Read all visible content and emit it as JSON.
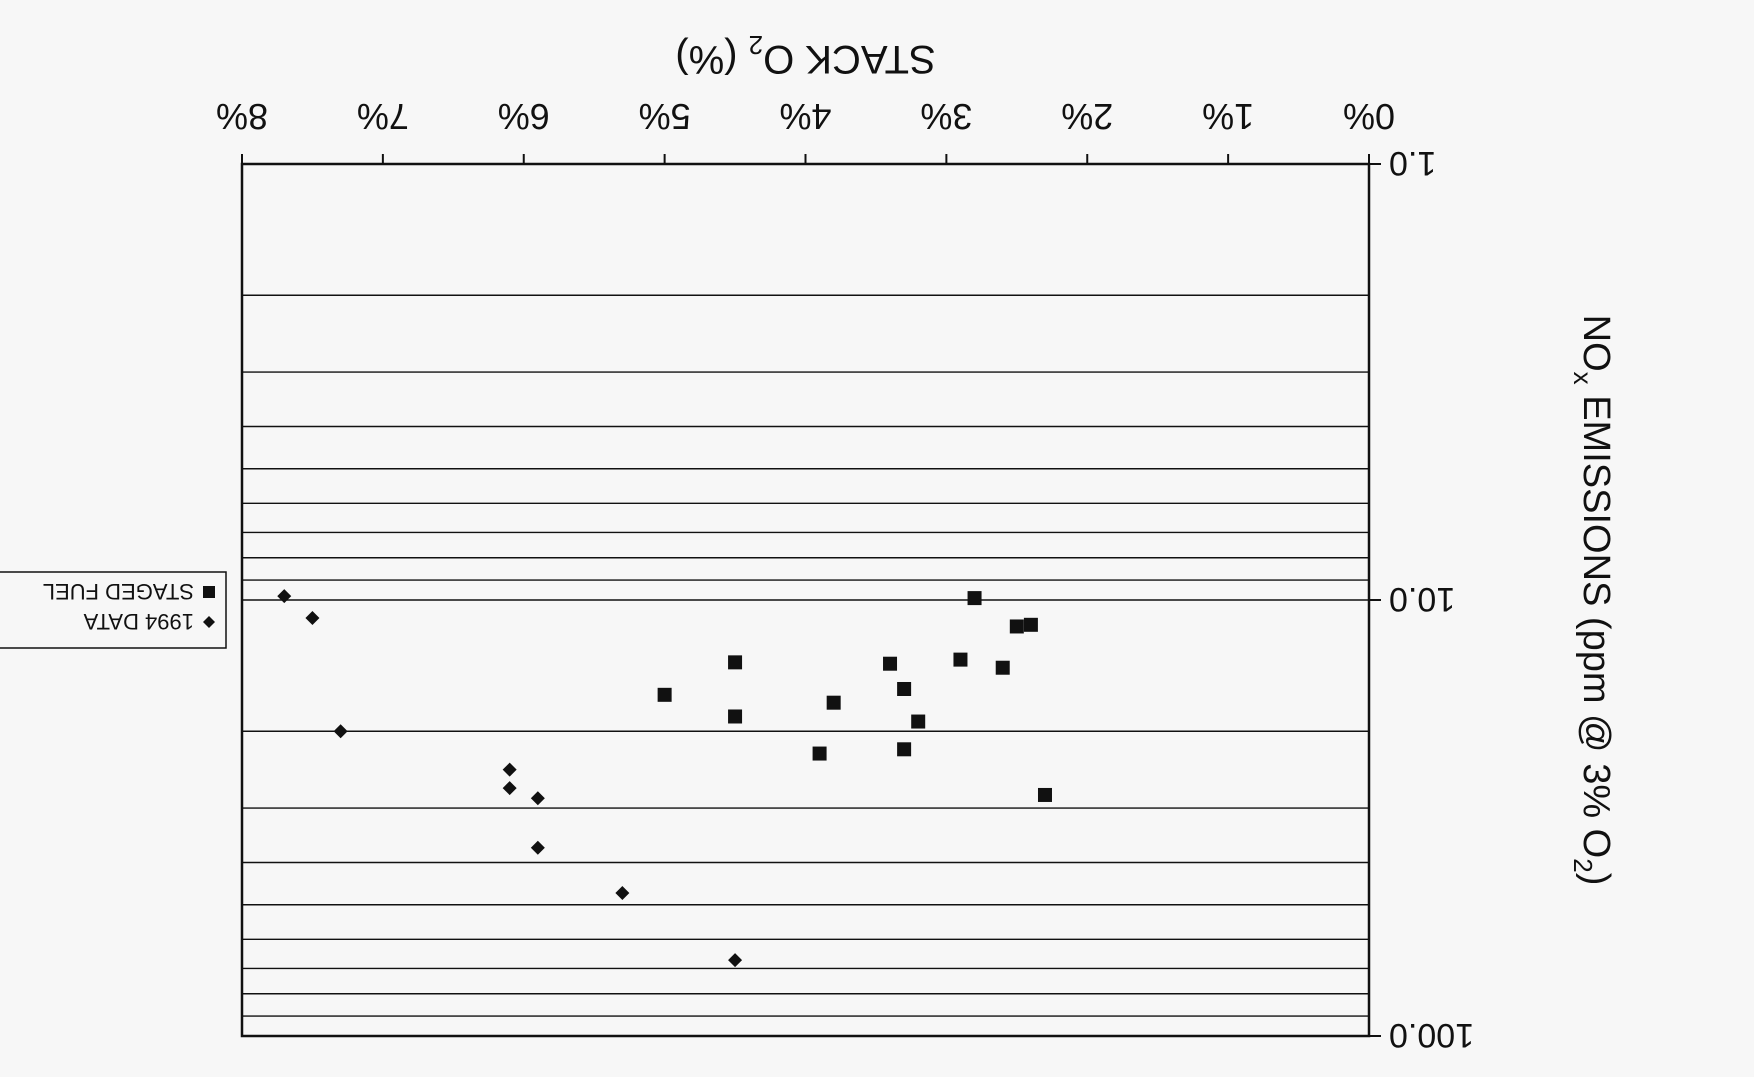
{
  "chart_data": {
    "type": "scatter",
    "orientation": "rotated-180",
    "title": "",
    "xlabel": "STACK O",
    "xlabel_sub": "2",
    "xlabel_tail": " (%)",
    "ylabel": "NO",
    "ylabel_sub": "x",
    "ylabel_mid": " EMISSIONS (ppm @ 3% O",
    "ylabel_sub2": "2",
    "ylabel_tail": ")",
    "xlim": [
      0,
      8
    ],
    "x_ticks": [
      "0%",
      "1%",
      "2%",
      "3%",
      "4%",
      "5%",
      "6%",
      "7%",
      "8%"
    ],
    "ylim": [
      1,
      100
    ],
    "yscale": "log",
    "y_ticks": [
      "1.0",
      "10.0",
      "100.0"
    ],
    "grid": true,
    "legend_position": "left",
    "series": [
      {
        "name": "1994 DATA",
        "marker": "diamond",
        "color": "#111111",
        "points": [
          {
            "x": 7.7,
            "y": 9.8
          },
          {
            "x": 7.5,
            "y": 11.0
          },
          {
            "x": 7.3,
            "y": 20.0
          },
          {
            "x": 6.1,
            "y": 24.5
          },
          {
            "x": 6.1,
            "y": 27.0
          },
          {
            "x": 5.9,
            "y": 28.5
          },
          {
            "x": 5.9,
            "y": 37.0
          },
          {
            "x": 5.3,
            "y": 47.0
          },
          {
            "x": 4.5,
            "y": 67.0
          }
        ]
      },
      {
        "name": "STAGED FUEL",
        "marker": "square",
        "color": "#111111",
        "points": [
          {
            "x": 2.8,
            "y": 9.9
          },
          {
            "x": 2.5,
            "y": 11.5
          },
          {
            "x": 2.4,
            "y": 11.4
          },
          {
            "x": 2.9,
            "y": 13.7
          },
          {
            "x": 2.6,
            "y": 14.3
          },
          {
            "x": 3.4,
            "y": 14.0
          },
          {
            "x": 3.3,
            "y": 16.0
          },
          {
            "x": 4.5,
            "y": 13.9
          },
          {
            "x": 5.0,
            "y": 16.5
          },
          {
            "x": 4.5,
            "y": 18.5
          },
          {
            "x": 3.8,
            "y": 17.2
          },
          {
            "x": 3.2,
            "y": 19.0
          },
          {
            "x": 3.3,
            "y": 22.0
          },
          {
            "x": 3.9,
            "y": 22.5
          },
          {
            "x": 2.3,
            "y": 28.0
          }
        ]
      }
    ]
  }
}
